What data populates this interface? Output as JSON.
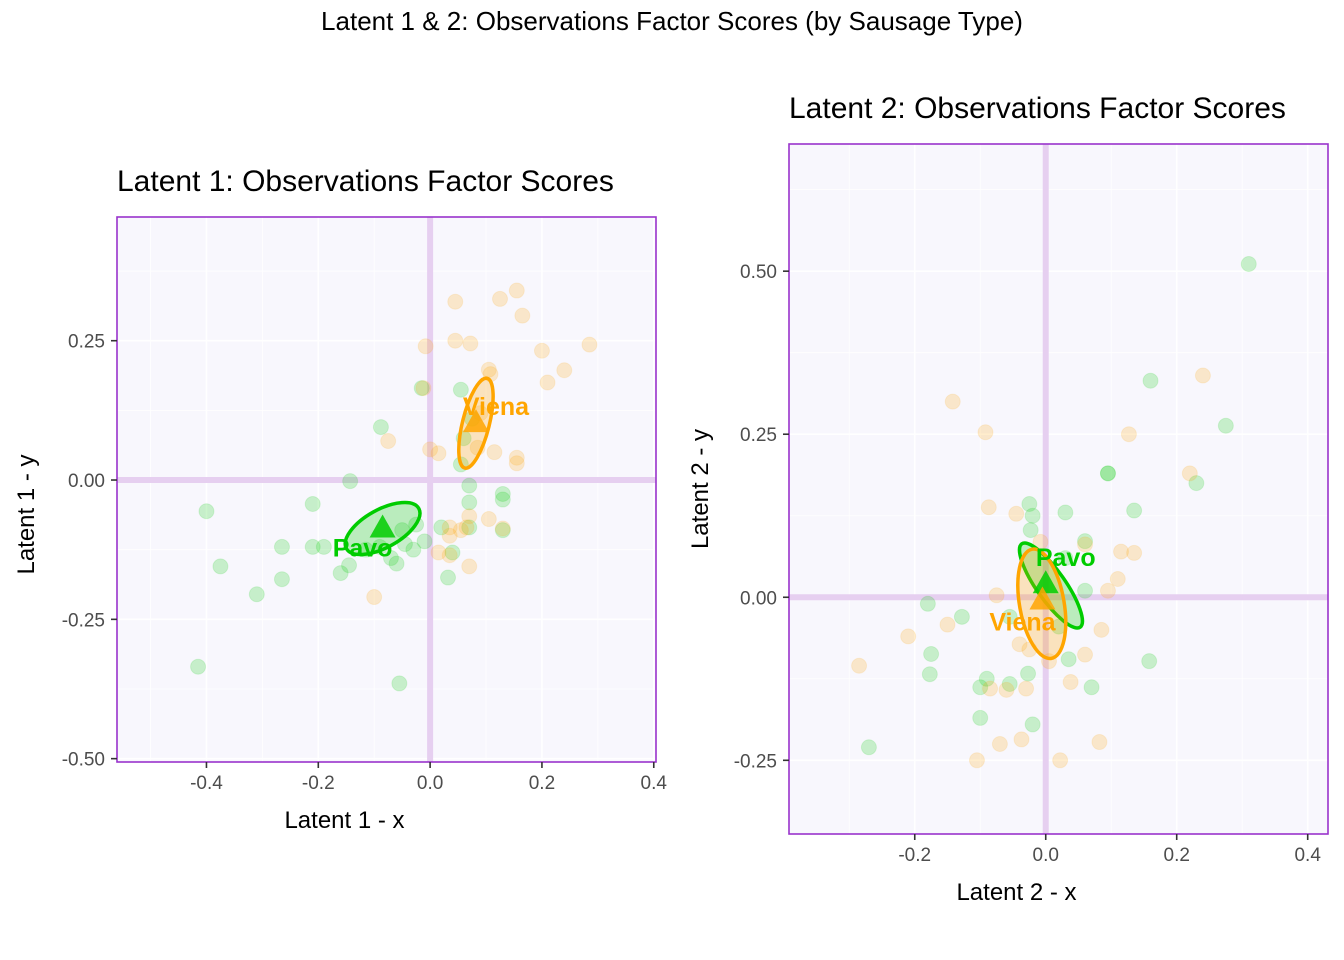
{
  "title": "Latent 1 & 2: Observations Factor Scores (by Sausage Type)",
  "colors": {
    "Pavo": "#00CC00",
    "Viena": "#FFA500",
    "panel_border": "#9933CC",
    "panel_bg": "#F8F7FD",
    "origin_lines": "#E6CFF0",
    "grid": "#FFFFFF"
  },
  "chart_data": [
    {
      "type": "scatter",
      "title": "Latent 1: Observations Factor Scores",
      "xlabel": "Latent 1 - x",
      "ylabel": "Latent 1 - y",
      "xlim": [
        -0.56,
        0.404
      ],
      "ylim": [
        -0.506,
        0.472
      ],
      "xticks": [
        -0.4,
        -0.2,
        0.0,
        0.2,
        0.4
      ],
      "xtick_labels": [
        "-0.4",
        "-0.2",
        "0.0",
        "0.2",
        "0.4"
      ],
      "yticks": [
        -0.5,
        -0.25,
        0.0,
        0.25
      ],
      "ytick_labels": [
        "-0.50",
        "-0.25",
        "0.00",
        "0.25"
      ],
      "grid": true,
      "series": [
        {
          "name": "Pavo",
          "points": [
            [
              -0.4,
              -0.056
            ],
            [
              -0.375,
              -0.155
            ],
            [
              -0.31,
              -0.205
            ],
            [
              -0.265,
              -0.12
            ],
            [
              -0.265,
              -0.178
            ],
            [
              -0.21,
              -0.043
            ],
            [
              -0.21,
              -0.12
            ],
            [
              -0.19,
              -0.12
            ],
            [
              -0.16,
              -0.167
            ],
            [
              -0.145,
              -0.153
            ],
            [
              -0.143,
              -0.002
            ],
            [
              -0.115,
              -0.125
            ],
            [
              -0.09,
              -0.12
            ],
            [
              -0.07,
              -0.14
            ],
            [
              -0.06,
              -0.15
            ],
            [
              -0.05,
              -0.09
            ],
            [
              -0.045,
              -0.115
            ],
            [
              -0.03,
              -0.125
            ],
            [
              -0.025,
              -0.08
            ],
            [
              -0.01,
              -0.11
            ],
            [
              0.02,
              -0.085
            ],
            [
              0.032,
              -0.175
            ],
            [
              0.04,
              -0.13
            ],
            [
              0.07,
              -0.01
            ],
            [
              0.07,
              -0.04
            ],
            [
              0.07,
              -0.085
            ],
            [
              0.13,
              -0.025
            ],
            [
              0.13,
              -0.035
            ],
            [
              0.13,
              -0.09
            ],
            [
              0.055,
              0.162
            ],
            [
              0.075,
              0.11
            ],
            [
              -0.088,
              0.095
            ],
            [
              0.06,
              0.075
            ],
            [
              0.055,
              0.028
            ],
            [
              -0.415,
              -0.335
            ],
            [
              -0.055,
              -0.365
            ],
            [
              -0.015,
              0.165
            ]
          ],
          "mean": [
            -0.085,
            -0.087
          ],
          "ellipse": {
            "center": [
              -0.085,
              -0.087
            ],
            "rx": 0.074,
            "ry": 0.034,
            "angle_deg": 29
          }
        },
        {
          "name": "Viena",
          "points": [
            [
              0.045,
              0.32
            ],
            [
              0.125,
              0.325
            ],
            [
              0.155,
              0.34
            ],
            [
              0.165,
              0.295
            ],
            [
              -0.008,
              0.24
            ],
            [
              0.045,
              0.25
            ],
            [
              0.072,
              0.245
            ],
            [
              0.105,
              0.198
            ],
            [
              0.108,
              0.19
            ],
            [
              0.2,
              0.232
            ],
            [
              0.285,
              0.243
            ],
            [
              0.21,
              0.175
            ],
            [
              0.24,
              0.197
            ],
            [
              -0.012,
              0.165
            ],
            [
              -0.075,
              0.07
            ],
            [
              0.0,
              0.055
            ],
            [
              0.015,
              0.048
            ],
            [
              0.085,
              0.058
            ],
            [
              0.115,
              0.05
            ],
            [
              0.155,
              0.04
            ],
            [
              0.155,
              0.03
            ],
            [
              0.07,
              -0.065
            ],
            [
              0.055,
              -0.09
            ],
            [
              0.035,
              -0.085
            ],
            [
              0.035,
              -0.1
            ],
            [
              0.015,
              -0.13
            ],
            [
              0.035,
              -0.135
            ],
            [
              0.07,
              -0.155
            ],
            [
              0.105,
              -0.07
            ],
            [
              0.13,
              -0.087
            ],
            [
              -0.1,
              -0.21
            ],
            [
              0.065,
              -0.085
            ],
            [
              0.09,
              0.12
            ]
          ],
          "mean": [
            0.082,
            0.102
          ],
          "ellipse": {
            "center": [
              0.082,
              0.102
            ],
            "rx": 0.024,
            "ry": 0.083,
            "angle_deg": -14
          }
        }
      ],
      "annotations": [
        "Pavo",
        "Viena"
      ]
    },
    {
      "type": "scatter",
      "title": "Latent 2: Observations Factor Scores",
      "xlabel": "Latent 2 - x",
      "ylabel": "Latent 2 - y",
      "xlim": [
        -0.392,
        0.431
      ],
      "ylim": [
        -0.363,
        0.695
      ],
      "xticks": [
        -0.2,
        0.0,
        0.2,
        0.4
      ],
      "xtick_labels": [
        "-0.2",
        "0.0",
        "0.2",
        "0.4"
      ],
      "yticks": [
        -0.25,
        0.0,
        0.25,
        0.5
      ],
      "ytick_labels": [
        "-0.25",
        "0.00",
        "0.25",
        "0.50"
      ],
      "grid": true,
      "series": [
        {
          "name": "Pavo",
          "points": [
            [
              0.31,
              0.511
            ],
            [
              0.16,
              0.332
            ],
            [
              0.275,
              0.263
            ],
            [
              0.095,
              0.19
            ],
            [
              0.23,
              0.175
            ],
            [
              0.135,
              0.133
            ],
            [
              0.03,
              0.13
            ],
            [
              -0.025,
              0.143
            ],
            [
              -0.02,
              0.125
            ],
            [
              -0.023,
              0.103
            ],
            [
              0.06,
              0.086
            ],
            [
              -0.18,
              -0.01
            ],
            [
              -0.128,
              -0.03
            ],
            [
              -0.1,
              -0.138
            ],
            [
              -0.09,
              -0.125
            ],
            [
              -0.055,
              -0.133
            ],
            [
              -0.027,
              -0.117
            ],
            [
              0.035,
              -0.095
            ],
            [
              0.07,
              -0.138
            ],
            [
              0.158,
              -0.098
            ],
            [
              -0.175,
              -0.087
            ],
            [
              -0.177,
              -0.118
            ],
            [
              -0.1,
              -0.185
            ],
            [
              -0.02,
              -0.195
            ],
            [
              -0.27,
              -0.23
            ],
            [
              0.095,
              0.19
            ],
            [
              0.06,
              0.01
            ],
            [
              0.02,
              -0.045
            ],
            [
              -0.055,
              -0.03
            ],
            [
              0.03,
              0.06
            ]
          ],
          "mean": [
            0.0,
            0.02
          ],
          "ellipse": {
            "center": [
              0.008,
              0.018
            ],
            "rx": 0.022,
            "ry": 0.078,
            "angle_deg": 35
          }
        },
        {
          "name": "Viena",
          "points": [
            [
              -0.142,
              0.3
            ],
            [
              0.24,
              0.34
            ],
            [
              0.22,
              0.19
            ],
            [
              -0.092,
              0.253
            ],
            [
              0.127,
              0.25
            ],
            [
              -0.087,
              0.138
            ],
            [
              -0.045,
              0.128
            ],
            [
              -0.008,
              0.085
            ],
            [
              0.06,
              0.081
            ],
            [
              0.115,
              0.07
            ],
            [
              0.135,
              0.068
            ],
            [
              0.11,
              0.028
            ],
            [
              0.095,
              0.01
            ],
            [
              -0.075,
              0.003
            ],
            [
              -0.15,
              -0.042
            ],
            [
              -0.21,
              -0.06
            ],
            [
              -0.285,
              -0.105
            ],
            [
              -0.085,
              -0.14
            ],
            [
              -0.04,
              -0.072
            ],
            [
              -0.025,
              -0.08
            ],
            [
              0.085,
              -0.05
            ],
            [
              0.06,
              -0.088
            ],
            [
              -0.03,
              -0.14
            ],
            [
              0.038,
              -0.13
            ],
            [
              -0.07,
              -0.225
            ],
            [
              -0.037,
              -0.218
            ],
            [
              0.082,
              -0.222
            ],
            [
              -0.105,
              -0.25
            ],
            [
              0.022,
              -0.25
            ],
            [
              0.005,
              -0.098
            ],
            [
              -0.06,
              -0.142
            ]
          ],
          "mean": [
            -0.005,
            -0.005
          ],
          "ellipse": {
            "center": [
              -0.006,
              -0.01
            ],
            "rx": 0.034,
            "ry": 0.085,
            "angle_deg": 10
          }
        }
      ],
      "annotations": [
        "Pavo",
        "Viena"
      ]
    }
  ]
}
